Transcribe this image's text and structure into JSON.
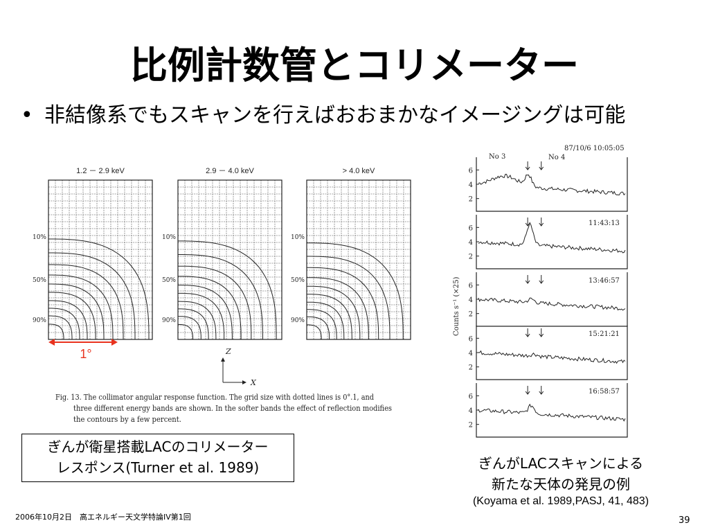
{
  "title": "比例計数管とコリメーター",
  "bullet": {
    "mark": "•",
    "text": "非結像系でもスキャンを行えばおおまかなイメージングは可能"
  },
  "figure_left": {
    "panels": [
      {
        "label": "1.2 － 2.9 keV",
        "y_ticks": [
          "10%",
          "50%",
          "90%"
        ]
      },
      {
        "label": "2.9 － 4.0 keV",
        "y_ticks": [
          "10%",
          "50%",
          "90%"
        ]
      },
      {
        "label": "> 4.0 keV",
        "y_ticks": [
          "10%",
          "50%",
          "90%"
        ]
      }
    ],
    "scale_label": "1°",
    "axis_z": "Z",
    "axis_x": "X",
    "caption_lines": [
      "Fig. 13.  The collimator angular response function. The grid size with dotted lines is 0°.1, and",
      "three different energy bands are shown. In the softer bands the effect of reflection modifies",
      "the contours by a few percent."
    ]
  },
  "figure_right": {
    "marker_labels": [
      "No 3",
      "No 4"
    ],
    "y_axis_label": "Counts s⁻¹ (×25)",
    "y_ticks": [
      "6",
      "4",
      "2"
    ],
    "time_labels": [
      "87/10/6 10:05:05",
      "11:43:13",
      "13:46:57",
      "15:21:21",
      "16:58:57"
    ]
  },
  "caption_box": {
    "line1": "ぎんが衛星搭載LACのコリメーター",
    "line2": "レスポンス(Turner et al. 1989)"
  },
  "right_caption": {
    "line1": "ぎんがLACスキャンによる",
    "line2": "新たな天体の発見の例",
    "line3": "(Koyama et al. 1989,PASJ, 41, 483)"
  },
  "footer": "2006年10月2日　高エネルギー天文学特論IV第1回",
  "page_number": "39",
  "colors": {
    "accent_red": "#e8321e",
    "text": "#000000",
    "plot_ink": "#222222"
  }
}
